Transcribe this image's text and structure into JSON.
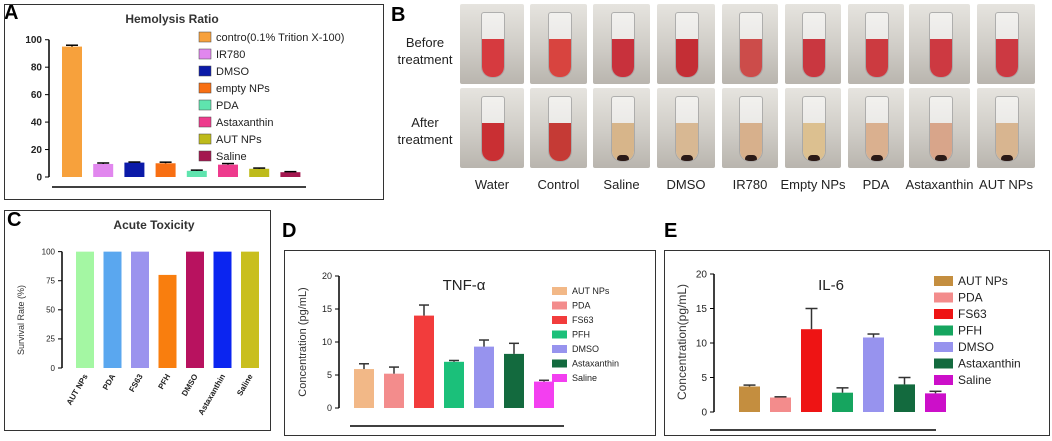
{
  "panels": {
    "a": {
      "letter": "A"
    },
    "b": {
      "letter": "B"
    },
    "c": {
      "letter": "C"
    },
    "d": {
      "letter": "D"
    },
    "e": {
      "letter": "E"
    }
  },
  "chart_data": [
    {
      "id": "A",
      "type": "bar",
      "title": "Hemolysis Ratio",
      "xlabel": "",
      "ylabel": "",
      "ylim": [
        0,
        110
      ],
      "yticks": [
        0,
        20,
        40,
        60,
        80,
        100
      ],
      "categories": [
        "contro(0.1% Trition X-100)",
        "IR780",
        "DMSO",
        "empty NPs",
        "PDA",
        "Astaxanthin",
        "AUT NPs",
        "Saline"
      ],
      "values": [
        95,
        9.5,
        10.5,
        10,
        4.5,
        9,
        6,
        3.5
      ],
      "errors": [
        1,
        0.7,
        0.4,
        0.8,
        0.5,
        0.8,
        0.5,
        0.4
      ],
      "colors": [
        "#f7a13c",
        "#e187ee",
        "#0b1aa8",
        "#f86f13",
        "#5fe4ae",
        "#ee3b8d",
        "#bebb1b",
        "#a4174f"
      ],
      "legend": [
        "contro(0.1% Trition X-100)",
        "IR780",
        "DMSO",
        "empty NPs",
        "PDA",
        "Astaxanthin",
        "AUT NPs",
        "Saline"
      ]
    },
    {
      "id": "C",
      "type": "bar",
      "title": "Acute Toxicity",
      "xlabel": "",
      "ylabel": "Survival Rate (%)",
      "ylim": [
        0,
        110
      ],
      "yticks": [
        0,
        25,
        50,
        75,
        100
      ],
      "categories": [
        "AUT NPs",
        "PDA",
        "FS63",
        "PFH",
        "DMSO",
        "Astaxanthin",
        "Saline"
      ],
      "values": [
        100,
        100,
        100,
        80,
        100,
        100,
        100
      ],
      "colors": [
        "#a4f7a3",
        "#5aa7ef",
        "#9b93ee",
        "#f97e0e",
        "#b8125f",
        "#0b25f0",
        "#c9bf1e"
      ]
    },
    {
      "id": "D",
      "type": "bar",
      "title": "TNF-α",
      "xlabel": "",
      "ylabel": "Concentration (pg/mL)",
      "ylim": [
        0,
        20
      ],
      "yticks": [
        0,
        5,
        10,
        15,
        20
      ],
      "categories": [
        "AUT NPs",
        "PDA",
        "FS63",
        "PFH",
        "DMSO",
        "Astaxanthin",
        "Saline"
      ],
      "values": [
        5.9,
        5.2,
        14,
        7,
        9.3,
        8.2,
        4
      ],
      "errors": [
        0.8,
        1,
        1.6,
        0.2,
        1,
        1.6,
        0.2
      ],
      "colors": [
        "#f2b887",
        "#f38c8c",
        "#f23c3c",
        "#1bc07a",
        "#9793ee",
        "#136a3e",
        "#f33ff0"
      ],
      "legend": [
        "AUT NPs",
        "PDA",
        "FS63",
        "PFH",
        "DMSO",
        "Astaxanthin",
        "Saline"
      ]
    },
    {
      "id": "E",
      "type": "bar",
      "title": "IL-6",
      "xlabel": "",
      "ylabel": "Concentration(pg/mL)",
      "ylim": [
        0,
        20
      ],
      "yticks": [
        0,
        5,
        10,
        15,
        20
      ],
      "categories": [
        "AUT NPs",
        "PDA",
        "FS63",
        "PFH",
        "DMSO",
        "Astaxanthin",
        "Saline"
      ],
      "values": [
        3.7,
        2.1,
        12,
        2.8,
        10.8,
        4,
        2.7
      ],
      "errors": [
        0.2,
        0.1,
        3,
        0.7,
        0.5,
        1,
        0.3
      ],
      "colors": [
        "#c48e3f",
        "#f38c8c",
        "#ee1414",
        "#16a55f",
        "#9793ee",
        "#136a3e",
        "#cc0fc9"
      ],
      "legend": [
        "AUT NPs",
        "PDA",
        "FS63",
        "PFH",
        "DMSO",
        "Astaxanthin",
        "Saline"
      ]
    }
  ],
  "photos": {
    "before_label": "Before treatment",
    "after_label": "After treatment",
    "columns": [
      {
        "label": "Water",
        "before_color": "#d63a3f",
        "after_color": "#c92f33"
      },
      {
        "label": "Control",
        "before_color": "#d8443f",
        "after_color": "#c53a35"
      },
      {
        "label": "Saline",
        "before_color": "#c8313c",
        "after_color": "#d7b58a"
      },
      {
        "label": "DMSO",
        "before_color": "#c42e35",
        "after_color": "#d8b893"
      },
      {
        "label": "IR780",
        "before_color": "#cc4c4a",
        "after_color": "#d7b08c"
      },
      {
        "label": "Empty NPs",
        "before_color": "#c93740",
        "after_color": "#dcc090"
      },
      {
        "label": "PDA",
        "before_color": "#cc3a40",
        "after_color": "#dab08f"
      },
      {
        "label": "Astaxanthin",
        "before_color": "#cd3941",
        "after_color": "#d8a58a"
      },
      {
        "label": "AUT NPs",
        "before_color": "#cc3942",
        "after_color": "#d8b590"
      }
    ]
  }
}
